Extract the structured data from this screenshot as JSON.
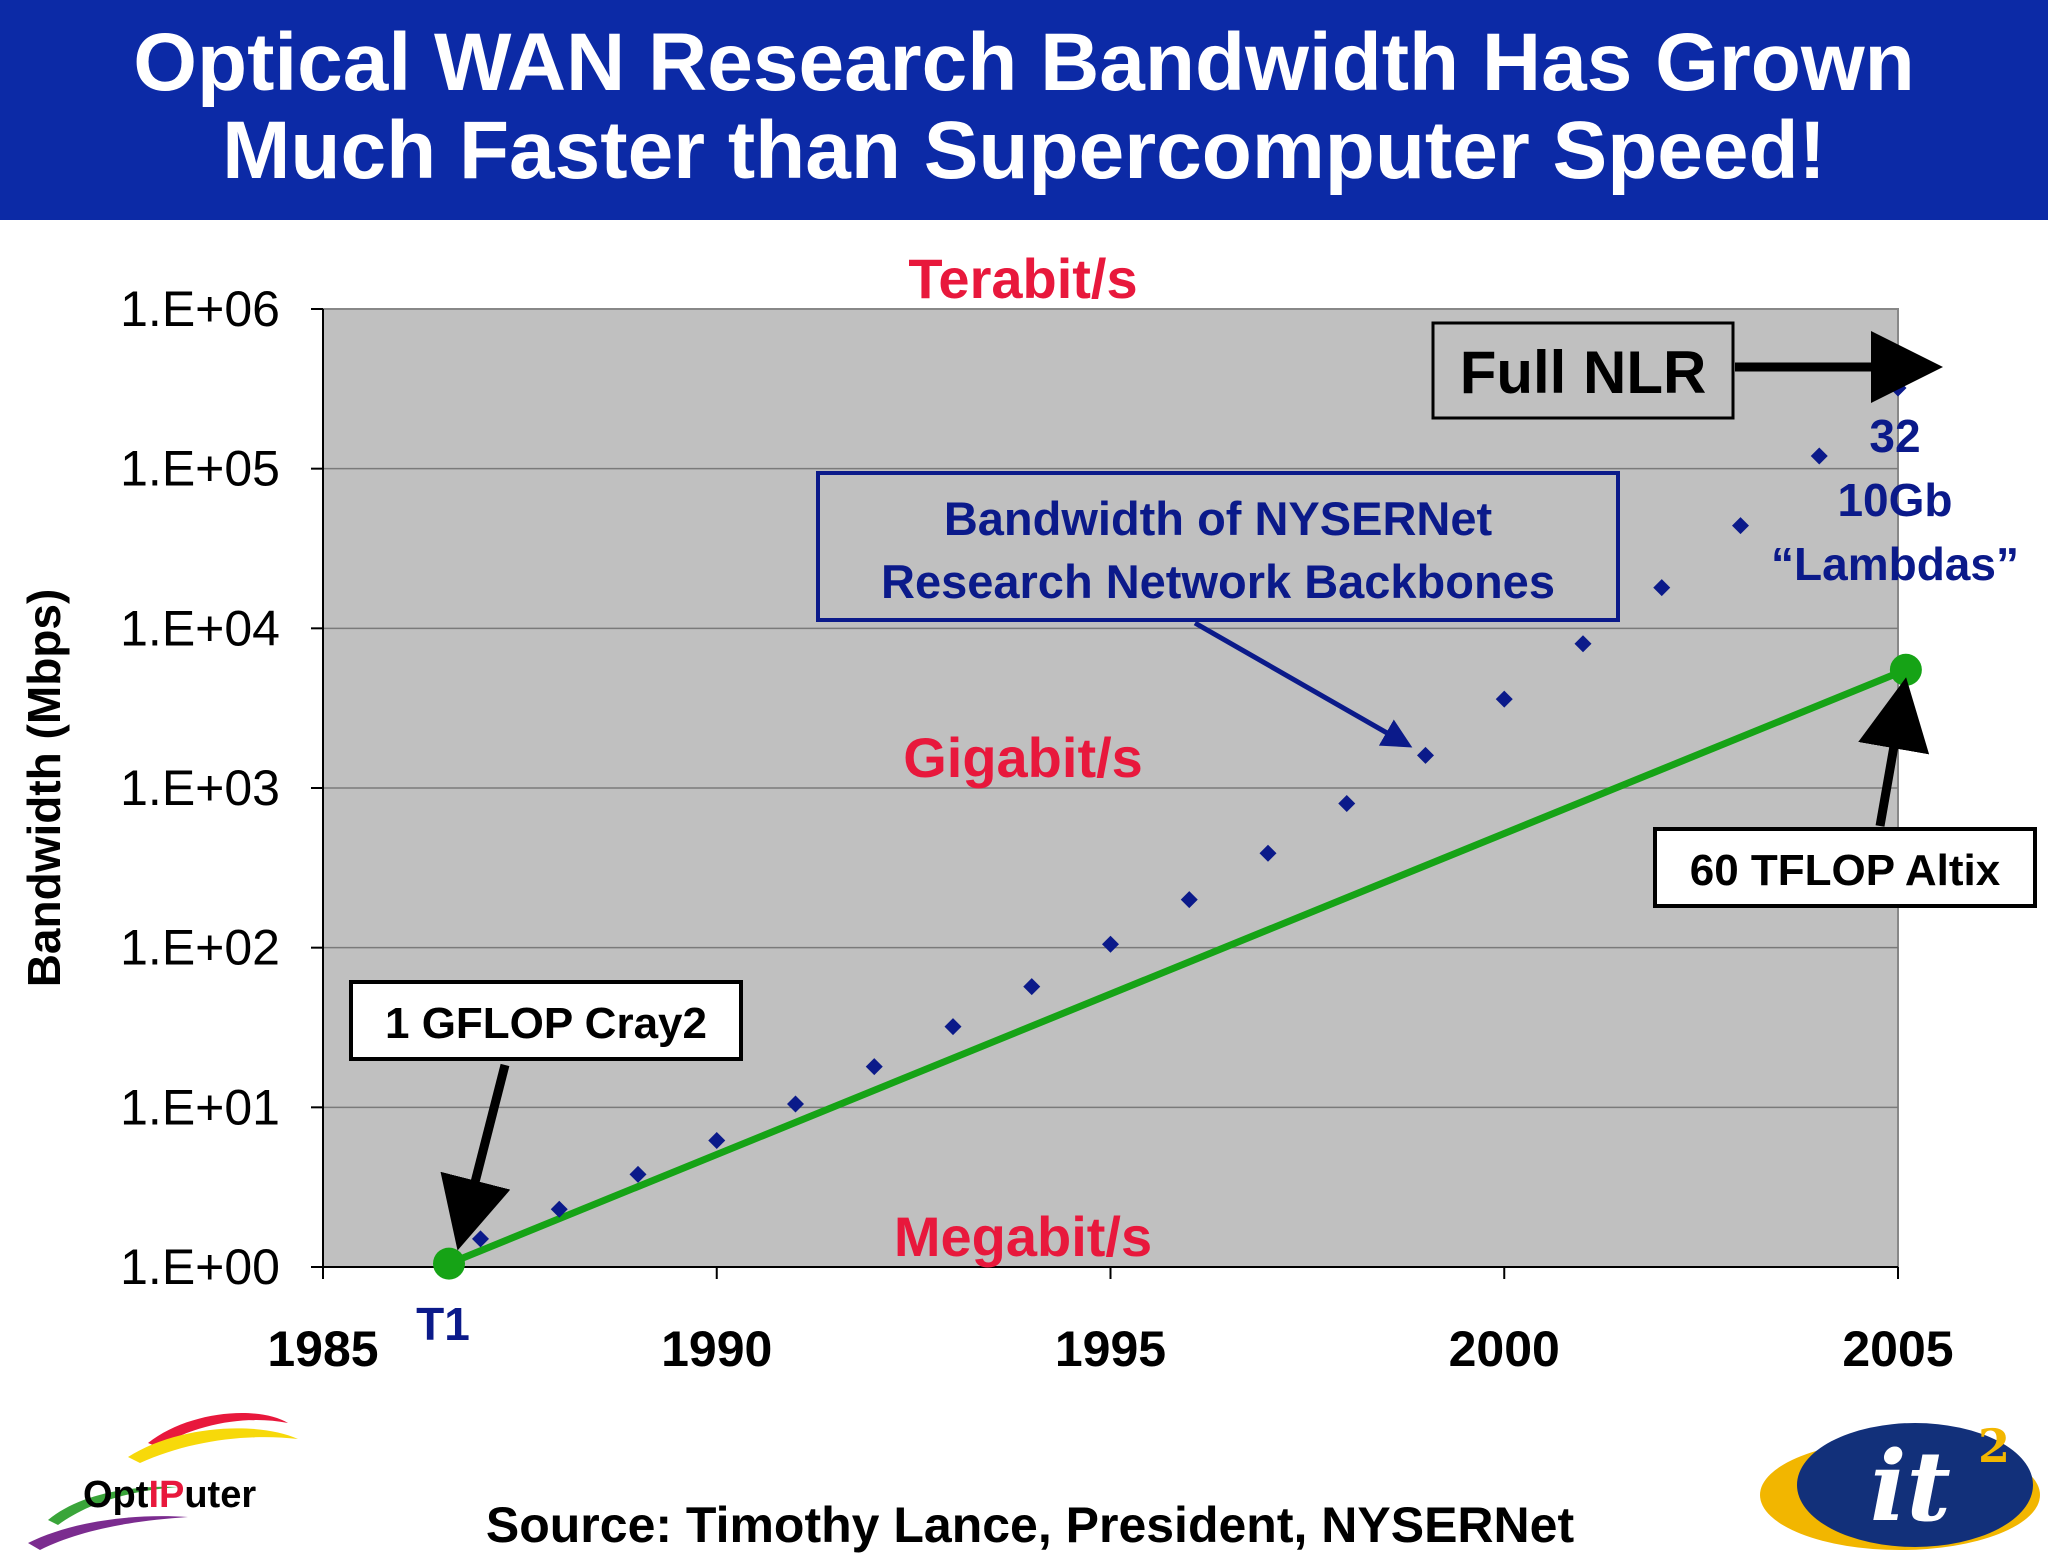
{
  "title": {
    "line1": "Optical WAN Research Bandwidth Has Grown",
    "line2": "Much Faster than Supercomputer Speed!"
  },
  "source": "Source: Timothy Lance, President, NYSERNet",
  "logos": {
    "left": "OptIPuter",
    "right": "it2"
  },
  "colors": {
    "banner": "#0c2aa6",
    "plot_bg": "#c0c0c0",
    "series_bandwidth": "#0b1a8a",
    "series_supercomputer": "#16a316",
    "rate_labels": "#e8183c"
  },
  "chart_data": {
    "type": "scatter",
    "ylabel": "Bandwidth (Mbps)",
    "xlabel": "",
    "y_scale": "log",
    "xlim": [
      1985,
      2005
    ],
    "ylim": [
      1,
      1000000
    ],
    "x_ticks": [
      "1985",
      "1990",
      "1995",
      "2000",
      "2005"
    ],
    "y_ticks": [
      "1.E+00",
      "1.E+01",
      "1.E+02",
      "1.E+03",
      "1.E+04",
      "1.E+05",
      "1.E+06"
    ],
    "grid": true,
    "series": [
      {
        "kind": "markers",
        "x": [
          1987,
          1988,
          1989,
          1990,
          1991,
          1992,
          1993,
          1994,
          1995,
          1996,
          1997,
          1998,
          1999,
          2000,
          2001,
          2002,
          2003,
          2004,
          2005
        ],
        "y": [
          1.5,
          2.3,
          3.8,
          6.2,
          10.5,
          18,
          32,
          57,
          105,
          200,
          390,
          800,
          1600,
          3600,
          8000,
          18000,
          44000,
          120000,
          320000
        ]
      },
      {
        "kind": "line",
        "x": [
          1986.6,
          2005.1
        ],
        "y": [
          1.05,
          5500
        ]
      }
    ],
    "band_labels": [
      "Terabit/s",
      "Gigabit/s",
      "Megabit/s"
    ],
    "annotations": {
      "t1": "T1",
      "cray": "1 GFLOP Cray2",
      "altix": "60 TFLOP Altix",
      "nlr": "Full NLR",
      "nysernet_line1": "Bandwidth of NYSERNet",
      "nysernet_line2": "Research Network Backbones",
      "lambdas_line1": "32",
      "lambdas_line2": "10Gb",
      "lambdas_line3": "“Lambdas”"
    }
  }
}
